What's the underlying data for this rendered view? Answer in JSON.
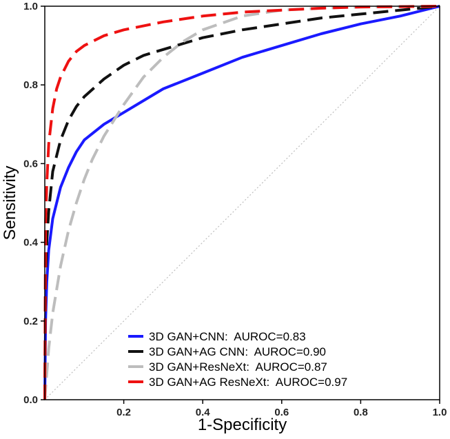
{
  "chart_data": {
    "type": "line",
    "xlabel": "1-Specificity",
    "ylabel": "Sensitivity",
    "xlim": [
      0,
      1
    ],
    "ylim": [
      0,
      1
    ],
    "x_ticks": [
      "0.2",
      "0.4",
      "0.6",
      "0.8",
      "1.0"
    ],
    "y_ticks": [
      "0.0",
      "0.2",
      "0.4",
      "0.6",
      "0.8",
      "1.0"
    ],
    "x_tick_values": [
      0.2,
      0.4,
      0.6,
      0.8,
      1.0
    ],
    "y_tick_values": [
      0.0,
      0.2,
      0.4,
      0.6,
      0.8,
      1.0
    ],
    "grid": false,
    "legend_position": "bottom-right",
    "reference_line": {
      "x": [
        0,
        1
      ],
      "y": [
        0,
        1
      ],
      "color": "#bdbdbd",
      "style": "dotted"
    },
    "series": [
      {
        "name": "3D GAN+CNN:  AUROC=0.83",
        "color": "#1a1aff",
        "style": "solid",
        "x": [
          0,
          0.002,
          0.005,
          0.01,
          0.02,
          0.04,
          0.06,
          0.08,
          0.1,
          0.15,
          0.2,
          0.25,
          0.3,
          0.4,
          0.5,
          0.6,
          0.7,
          0.8,
          0.9,
          1.0
        ],
        "y": [
          0,
          0.2,
          0.3,
          0.38,
          0.46,
          0.54,
          0.59,
          0.63,
          0.66,
          0.7,
          0.73,
          0.76,
          0.79,
          0.83,
          0.87,
          0.9,
          0.93,
          0.955,
          0.975,
          1.0
        ]
      },
      {
        "name": "3D GAN+AG CNN:  AUROC=0.90",
        "color": "#111111",
        "style": "dashed",
        "x": [
          0,
          0.002,
          0.005,
          0.01,
          0.02,
          0.04,
          0.06,
          0.08,
          0.1,
          0.15,
          0.2,
          0.25,
          0.3,
          0.4,
          0.5,
          0.6,
          0.7,
          0.8,
          0.9,
          1.0
        ],
        "y": [
          0,
          0.3,
          0.4,
          0.48,
          0.58,
          0.66,
          0.71,
          0.745,
          0.77,
          0.815,
          0.85,
          0.875,
          0.89,
          0.92,
          0.94,
          0.955,
          0.97,
          0.98,
          0.99,
          1.0
        ]
      },
      {
        "name": "3D GAN+ResNeXt:  AUROC=0.87",
        "color": "#bdbdbd",
        "style": "dashed",
        "x": [
          0,
          0.01,
          0.02,
          0.04,
          0.06,
          0.08,
          0.1,
          0.12,
          0.15,
          0.2,
          0.25,
          0.3,
          0.35,
          0.4,
          0.5,
          0.6,
          0.7,
          0.8,
          0.9,
          1.0
        ],
        "y": [
          0,
          0.13,
          0.22,
          0.34,
          0.43,
          0.5,
          0.56,
          0.61,
          0.67,
          0.75,
          0.82,
          0.87,
          0.91,
          0.94,
          0.975,
          0.99,
          0.995,
          0.998,
          0.999,
          1.0
        ]
      },
      {
        "name": "3D GAN+AG ResNeXt:  AUROC=0.97",
        "color": "#ee1111",
        "style": "dashed",
        "x": [
          0,
          0.002,
          0.005,
          0.01,
          0.02,
          0.03,
          0.04,
          0.06,
          0.08,
          0.1,
          0.15,
          0.2,
          0.3,
          0.4,
          0.5,
          0.6,
          0.7,
          0.8,
          0.9,
          1.0
        ],
        "y": [
          0,
          0.45,
          0.55,
          0.65,
          0.74,
          0.79,
          0.82,
          0.86,
          0.885,
          0.9,
          0.925,
          0.94,
          0.96,
          0.975,
          0.985,
          0.99,
          0.995,
          0.998,
          0.999,
          1.0
        ]
      }
    ]
  }
}
